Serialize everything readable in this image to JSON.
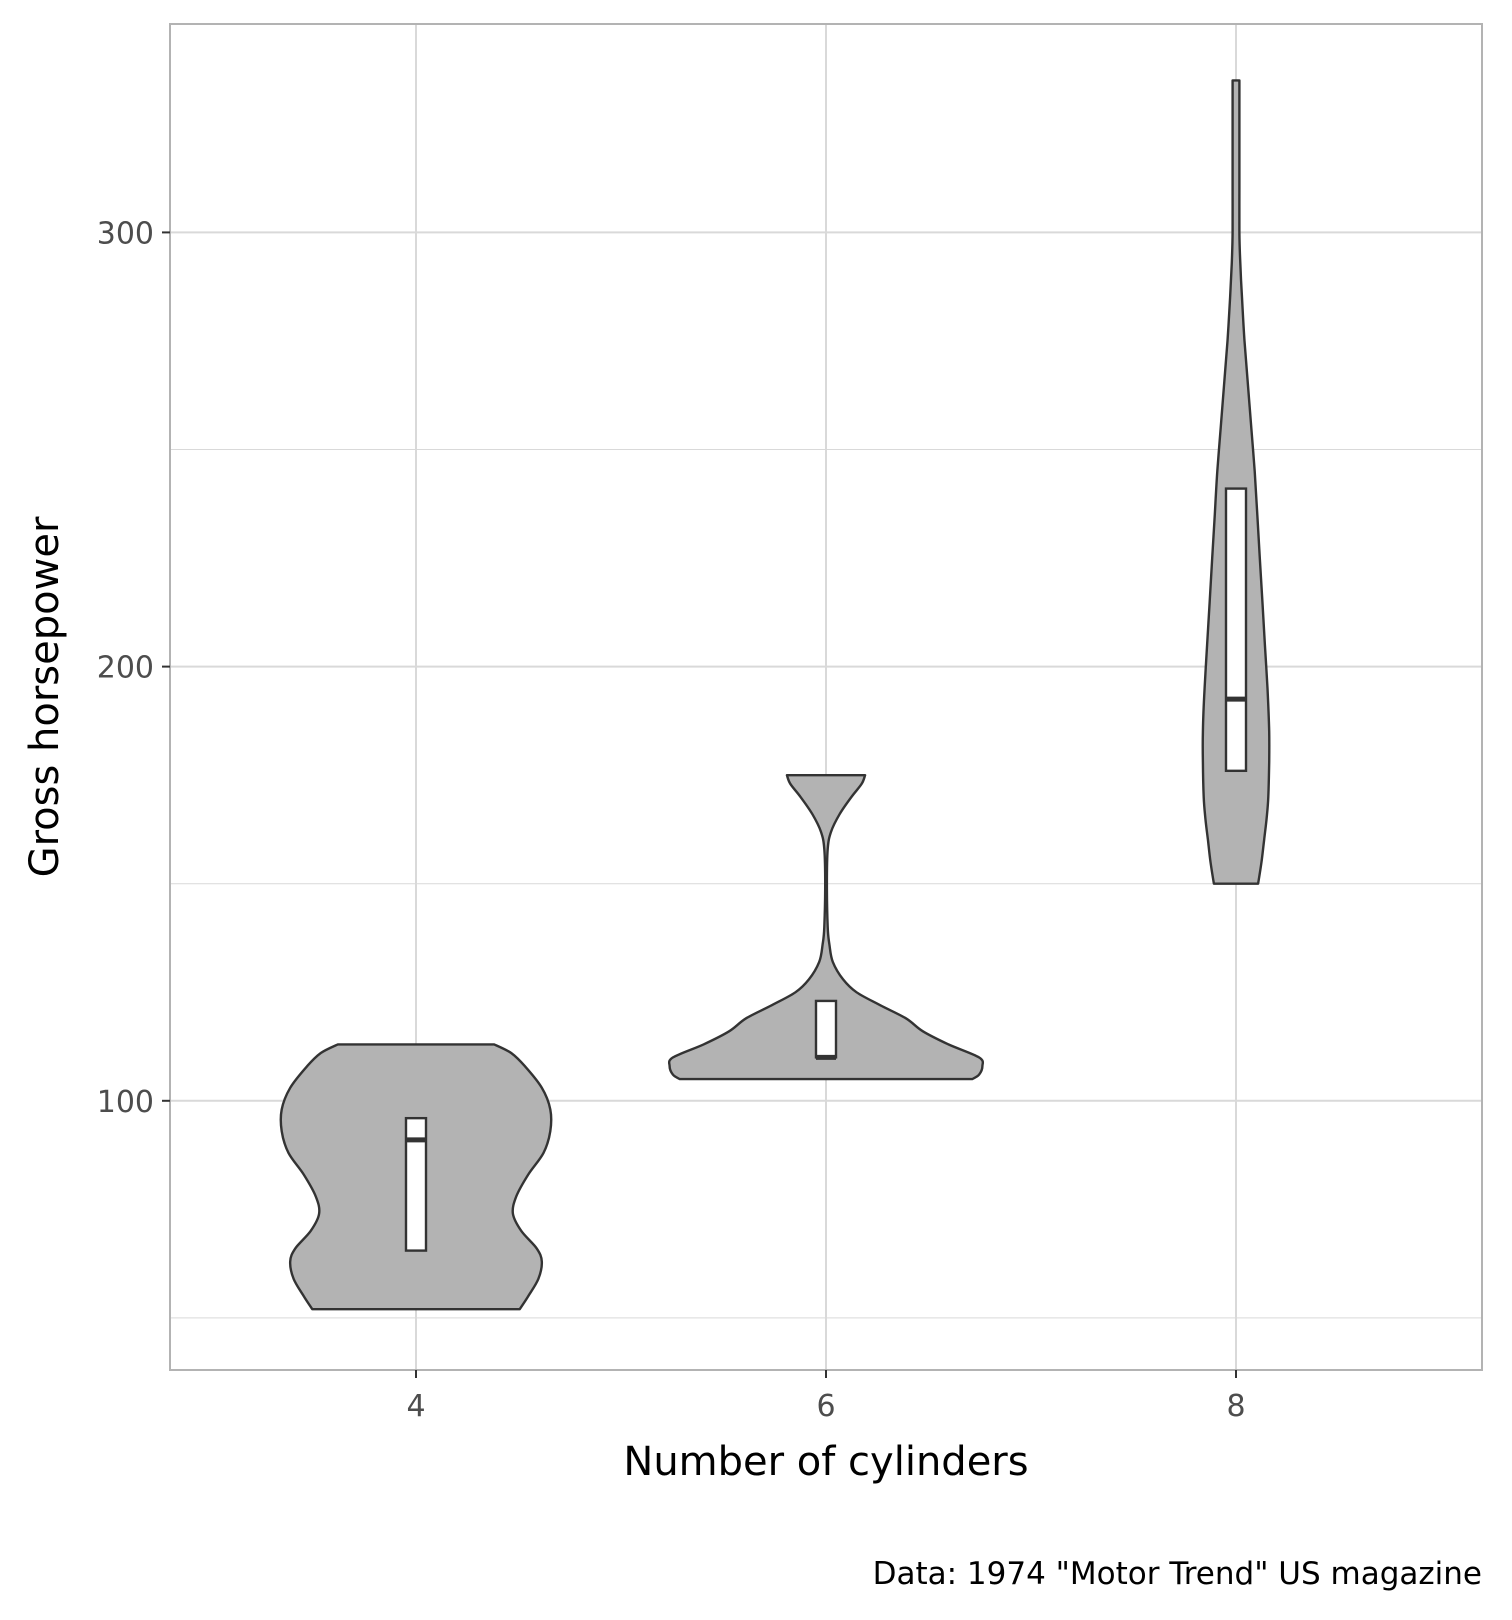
{
  "chart_data": {
    "type": "violin",
    "xlabel": "Number of cylinders",
    "ylabel": "Gross horsepower",
    "caption": "Data: 1974 \"Motor Trend\" US magazine",
    "categories": [
      "4",
      "6",
      "8"
    ],
    "x_ticks": [
      "4",
      "6",
      "8"
    ],
    "y_ticks": [
      100,
      200,
      300
    ],
    "y_minor_gridlines": [
      50,
      150,
      250
    ],
    "xlim": [
      2.8,
      9.2
    ],
    "ylim": [
      38,
      348
    ],
    "grid": true,
    "colors": {
      "violin_fill": "#b3b3b3",
      "outline": "#333333",
      "box_fill": "#ffffff",
      "grid": "#d9d9d9",
      "panel_border": "#b3b3b3"
    },
    "groups": [
      {
        "category": "4",
        "x": 4,
        "min": 52,
        "max": 113,
        "box": {
          "q1": 65.5,
          "median": 91,
          "q3": 96
        },
        "density_profile": [
          [
            52,
            0.61
          ],
          [
            55,
            0.66
          ],
          [
            59,
            0.72
          ],
          [
            63,
            0.74
          ],
          [
            66,
            0.71
          ],
          [
            70,
            0.62
          ],
          [
            74,
            0.57
          ],
          [
            78,
            0.59
          ],
          [
            83,
            0.66
          ],
          [
            88,
            0.75
          ],
          [
            93,
            0.79
          ],
          [
            98,
            0.79
          ],
          [
            103,
            0.74
          ],
          [
            108,
            0.64
          ],
          [
            111,
            0.56
          ],
          [
            113,
            0.46
          ]
        ]
      },
      {
        "category": "6",
        "x": 6,
        "min": 105,
        "max": 175,
        "box": {
          "q1": 110,
          "median": 110,
          "q3": 123
        },
        "density_profile": [
          [
            105,
            0.86
          ],
          [
            106,
            0.9
          ],
          [
            108,
            0.92
          ],
          [
            110,
            0.9
          ],
          [
            113,
            0.72
          ],
          [
            116,
            0.57
          ],
          [
            119,
            0.47
          ],
          [
            122,
            0.32
          ],
          [
            125,
            0.18
          ],
          [
            128,
            0.1
          ],
          [
            132,
            0.04
          ],
          [
            136,
            0.02
          ],
          [
            140,
            0.01
          ],
          [
            150,
            0.005
          ],
          [
            158,
            0.01
          ],
          [
            162,
            0.03
          ],
          [
            166,
            0.08
          ],
          [
            170,
            0.15
          ],
          [
            173,
            0.21
          ],
          [
            175,
            0.23
          ]
        ]
      },
      {
        "category": "8",
        "x": 8,
        "min": 150,
        "max": 335,
        "box": {
          "q1": 176,
          "median": 192.5,
          "q3": 241
        },
        "density_profile": [
          [
            150,
            0.13
          ],
          [
            155,
            0.15
          ],
          [
            160,
            0.165
          ],
          [
            165,
            0.18
          ],
          [
            170,
            0.19
          ],
          [
            178,
            0.195
          ],
          [
            185,
            0.195
          ],
          [
            195,
            0.185
          ],
          [
            205,
            0.17
          ],
          [
            215,
            0.155
          ],
          [
            225,
            0.14
          ],
          [
            235,
            0.125
          ],
          [
            245,
            0.11
          ],
          [
            255,
            0.09
          ],
          [
            265,
            0.07
          ],
          [
            275,
            0.05
          ],
          [
            285,
            0.035
          ],
          [
            293,
            0.025
          ],
          [
            300,
            0.02
          ],
          [
            310,
            0.02
          ],
          [
            320,
            0.02
          ],
          [
            335,
            0.02
          ]
        ]
      }
    ]
  }
}
